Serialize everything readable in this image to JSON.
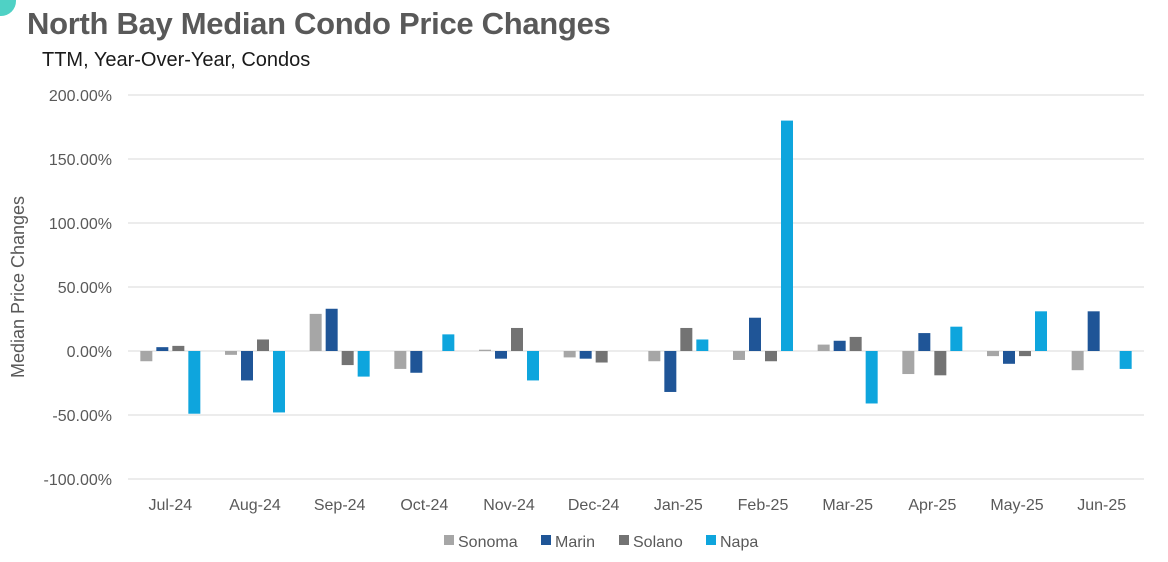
{
  "chart_data": {
    "type": "bar",
    "title": "North Bay Median Condo Price Changes",
    "subtitle": "TTM, Year-Over-Year, Condos",
    "xlabel": "",
    "ylabel": "Median Price Changes",
    "ylim": [
      -100,
      200
    ],
    "yticks": [
      200,
      150,
      100,
      50,
      0,
      -50,
      -100
    ],
    "ytick_labels": [
      "200.00%",
      "150.00%",
      "100.00%",
      "50.00%",
      "0.00%",
      "-50.00%",
      "-100.00%"
    ],
    "categories": [
      "Jul-24",
      "Aug-24",
      "Sep-24",
      "Oct-24",
      "Nov-24",
      "Dec-24",
      "Jan-25",
      "Feb-25",
      "Mar-25",
      "Apr-25",
      "May-25",
      "Jun-25"
    ],
    "grid": true,
    "legend_position": "bottom",
    "series": [
      {
        "name": "Sonoma",
        "color": "#a6a6a6",
        "values": [
          -8,
          -3,
          29,
          -14,
          1,
          -5,
          -8,
          -7,
          5,
          -18,
          -4,
          -15
        ]
      },
      {
        "name": "Marin",
        "color": "#1f5597",
        "values": [
          3,
          -23,
          33,
          -17,
          -6,
          -6,
          -32,
          26,
          8,
          14,
          -10,
          31
        ]
      },
      {
        "name": "Solano",
        "color": "#737373",
        "values": [
          4,
          9,
          -11,
          0,
          18,
          -9,
          18,
          -8,
          11,
          -19,
          -4,
          0
        ]
      },
      {
        "name": "Napa",
        "color": "#0ea5dd",
        "values": [
          -49,
          -48,
          -20,
          13,
          -23,
          0,
          9,
          180,
          -41,
          19,
          31,
          -14
        ]
      }
    ]
  }
}
